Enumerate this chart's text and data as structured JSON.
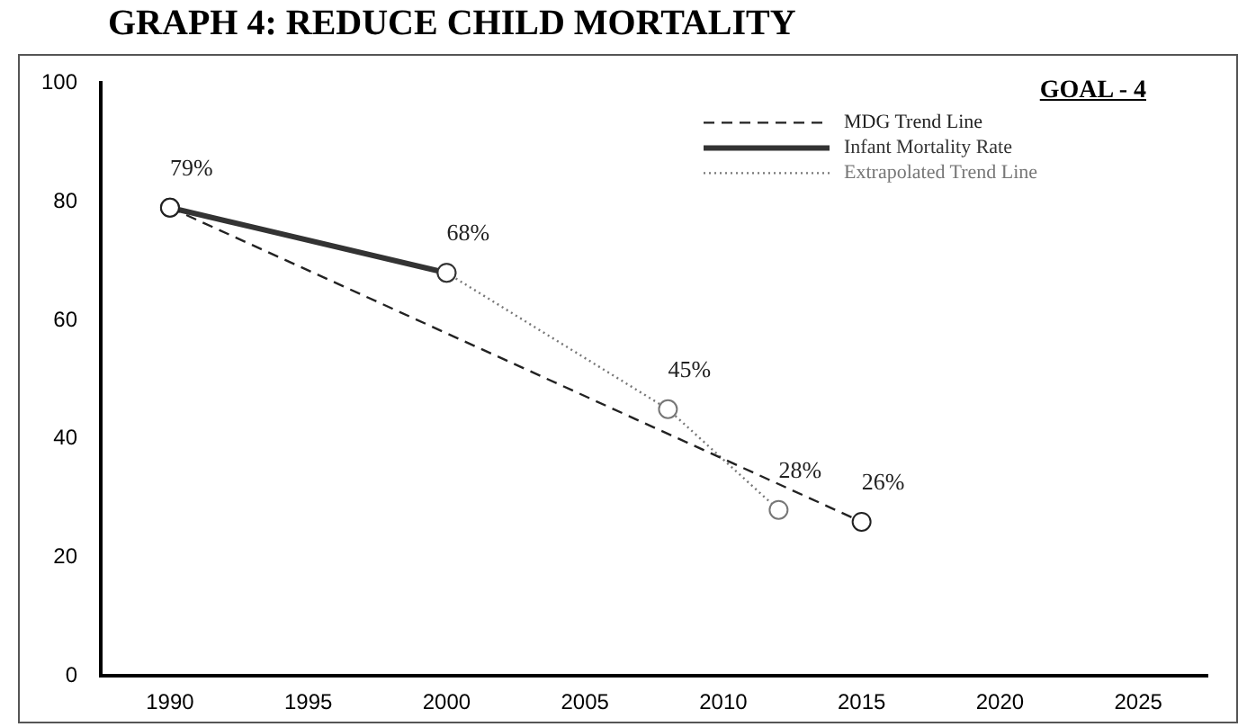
{
  "chart_data": {
    "type": "line",
    "title": "GRAPH 4: REDUCE CHILD MORTALITY",
    "annotations": [
      "GOAL - 4"
    ],
    "xlim": [
      1987.5,
      2027.5
    ],
    "xticks": [
      1990,
      1995,
      2000,
      2005,
      2010,
      2015,
      2020,
      2025
    ],
    "ylim": [
      0,
      100
    ],
    "yticks": [
      0,
      20,
      40,
      60,
      80,
      100
    ],
    "grid": false,
    "legend": "top right",
    "marker": "circle",
    "series": [
      {
        "name": "MDG Trend Line",
        "color": "#222222",
        "line_style": "dashed",
        "x": [
          1990,
          2015
        ],
        "values": [
          79,
          26
        ],
        "value_labels": [
          null,
          "26%"
        ]
      },
      {
        "name": "Infant Mortality Rate",
        "color": "#333333",
        "line_style": "solid",
        "x": [
          1990,
          2000
        ],
        "values": [
          79,
          68
        ],
        "value_labels": [
          "79%",
          "68%"
        ]
      },
      {
        "name": "Extrapolated Trend Line",
        "color": "#777777",
        "line_style": "dotted",
        "x": [
          2000,
          2008,
          2012
        ],
        "values": [
          68,
          45,
          28
        ],
        "value_labels": [
          null,
          "45%",
          "28%"
        ]
      }
    ]
  }
}
